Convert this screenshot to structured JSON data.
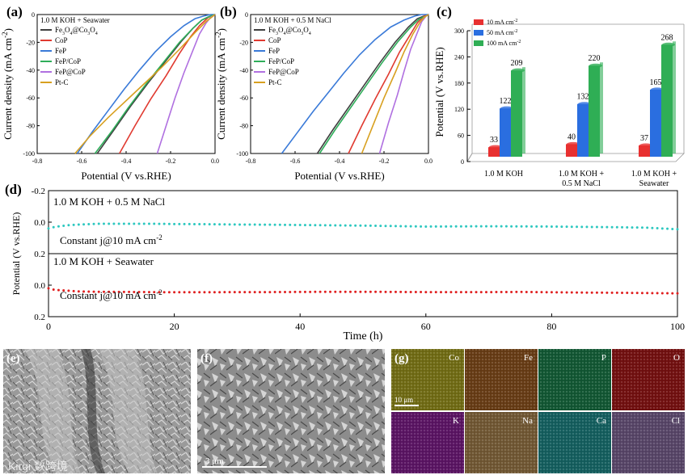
{
  "panels": {
    "a": {
      "letter": "(a)",
      "condition": "1.0 M KOH + Seawater",
      "xlabel": "Potential (V vs.RHE)",
      "ylabel": "Current density (mA cm",
      "ylabel_sup": "-2",
      "ylabel_end": ")"
    },
    "b": {
      "letter": "(b)",
      "condition": "1.0 M KOH + 0.5 M NaCl",
      "xlabel": "Potential (V vs.RHE)",
      "ylabel": "Current density (mA cm",
      "ylabel_sup": "-2",
      "ylabel_end": ")"
    },
    "c": {
      "letter": "(c)",
      "ylabel": "Potential (V vs.RHE)"
    },
    "d": {
      "letter": "(d)",
      "top_condition": "1.0 M KOH + 0.5 M NaCl",
      "top_note": "Constant j@10 mA cm",
      "top_note_sup": "-2",
      "bottom_condition": "1.0 M KOH + Seawater",
      "bottom_note": "Constant j@10 mA cm",
      "bottom_note_sup": "-2",
      "xlabel": "Time (h)",
      "ylabel": "Potential (V vs.RHE)"
    },
    "e": {
      "letter": "(e)",
      "watermark": "Kirgi 数跨境"
    },
    "f": {
      "letter": "(f)",
      "scale": "3 μm"
    },
    "g": {
      "letter": "(g)",
      "scale": "10 μm",
      "tiles": [
        {
          "label": "Co",
          "color": "#c8c020"
        },
        {
          "label": "Fe",
          "color": "#b86a22"
        },
        {
          "label": "P",
          "color": "#1e9a5a"
        },
        {
          "label": "O",
          "color": "#cc1a1a"
        },
        {
          "label": "K",
          "color": "#a020b0"
        },
        {
          "label": "Na",
          "color": "#c89a5a"
        },
        {
          "label": "Ca",
          "color": "#20a8a8"
        },
        {
          "label": "Cl",
          "color": "#9a7ab8"
        }
      ]
    }
  },
  "chart_data": [
    {
      "type": "line",
      "panel": "a",
      "xlim": [
        -0.8,
        0.0
      ],
      "ylim": [
        -100,
        0
      ],
      "xticks": [
        "-0.8",
        "-0.6",
        "-0.4",
        "-0.2",
        "0.0"
      ],
      "yticks": [
        "0",
        "-20",
        "-40",
        "-60",
        "-80",
        "-100"
      ],
      "legend_position": "top-left",
      "series": [
        {
          "name": "Fe3O4@Co3O4",
          "legend_main": "Fe",
          "legend_sub1": "3",
          "legend_mid": "O",
          "legend_sub2": "4",
          "legend_end": "@Co",
          "legend_sub3": "3",
          "legend_end2": "O",
          "legend_sub4": "4",
          "color": "#404040",
          "x": [
            -0.53,
            -0.45,
            -0.38,
            -0.3,
            -0.22,
            -0.15,
            -0.1,
            -0.06,
            -0.02,
            0.0
          ],
          "y": [
            -100,
            -82,
            -66,
            -49,
            -33,
            -19,
            -10,
            -4,
            -1,
            0
          ]
        },
        {
          "name": "CoP",
          "color": "#e03a30",
          "x": [
            -0.43,
            -0.36,
            -0.29,
            -0.22,
            -0.16,
            -0.11,
            -0.07,
            -0.03,
            0.0
          ],
          "y": [
            -100,
            -80,
            -61,
            -44,
            -28,
            -16,
            -8,
            -2,
            0
          ]
        },
        {
          "name": "FeP",
          "color": "#3a7ad8",
          "x": [
            -0.62,
            -0.55,
            -0.48,
            -0.41,
            -0.34,
            -0.27,
            -0.2,
            -0.14,
            -0.09,
            -0.05,
            -0.02,
            0.0
          ],
          "y": [
            -100,
            -84,
            -69,
            -54,
            -40,
            -27,
            -16,
            -8,
            -3,
            -1,
            0,
            0
          ]
        },
        {
          "name": "FeP/CoP",
          "color": "#2fae5a",
          "x": [
            -0.54,
            -0.46,
            -0.39,
            -0.31,
            -0.23,
            -0.16,
            -0.1,
            -0.06,
            -0.02,
            0.0
          ],
          "y": [
            -100,
            -83,
            -67,
            -50,
            -34,
            -20,
            -10,
            -4,
            -1,
            0
          ]
        },
        {
          "name": "FeP@CoP",
          "color": "#b070e0",
          "x": [
            -0.26,
            -0.22,
            -0.18,
            -0.14,
            -0.1,
            -0.07,
            -0.04,
            -0.02,
            0.0
          ],
          "y": [
            -100,
            -80,
            -60,
            -42,
            -26,
            -14,
            -6,
            -2,
            0
          ]
        },
        {
          "name": "Pt-C",
          "color": "#d8a020",
          "x": [
            -0.63,
            -0.56,
            -0.48,
            -0.4,
            -0.32,
            -0.24,
            -0.16,
            -0.09,
            -0.04,
            0.0
          ],
          "y": [
            -100,
            -87,
            -74,
            -62,
            -50,
            -38,
            -25,
            -13,
            -5,
            0
          ]
        }
      ]
    },
    {
      "type": "line",
      "panel": "b",
      "xlim": [
        -0.8,
        0.0
      ],
      "ylim": [
        -100,
        0
      ],
      "xticks": [
        "-0.8",
        "-0.6",
        "-0.4",
        "-0.2",
        "0.0"
      ],
      "yticks": [
        "0",
        "-20",
        "-40",
        "-60",
        "-80",
        "-100"
      ],
      "legend_position": "top-left",
      "series": [
        {
          "name": "Fe3O4@Co3O4",
          "legend_main": "Fe",
          "legend_sub1": "3",
          "legend_mid": "O",
          "legend_sub2": "4",
          "legend_end": "@Co",
          "legend_sub3": "3",
          "legend_end2": "O",
          "legend_sub4": "4",
          "color": "#404040",
          "x": [
            -0.5,
            -0.43,
            -0.36,
            -0.29,
            -0.22,
            -0.15,
            -0.09,
            -0.05,
            -0.02,
            0.0
          ],
          "y": [
            -100,
            -83,
            -67,
            -51,
            -35,
            -20,
            -9,
            -3,
            -1,
            0
          ]
        },
        {
          "name": "CoP",
          "color": "#e03a30",
          "x": [
            -0.36,
            -0.3,
            -0.24,
            -0.18,
            -0.13,
            -0.08,
            -0.05,
            -0.02,
            0.0
          ],
          "y": [
            -100,
            -80,
            -61,
            -43,
            -27,
            -14,
            -6,
            -1,
            0
          ]
        },
        {
          "name": "FeP",
          "color": "#3a7ad8",
          "x": [
            -0.66,
            -0.59,
            -0.52,
            -0.45,
            -0.38,
            -0.31,
            -0.24,
            -0.17,
            -0.11,
            -0.06,
            -0.03,
            0.0
          ],
          "y": [
            -100,
            -85,
            -70,
            -56,
            -42,
            -29,
            -18,
            -9,
            -4,
            -1,
            0,
            0
          ]
        },
        {
          "name": "FeP/CoP",
          "color": "#2fae5a",
          "x": [
            -0.49,
            -0.42,
            -0.35,
            -0.28,
            -0.21,
            -0.14,
            -0.08,
            -0.04,
            -0.01,
            0.0
          ],
          "y": [
            -100,
            -83,
            -67,
            -51,
            -35,
            -20,
            -9,
            -3,
            -1,
            0
          ]
        },
        {
          "name": "FeP@CoP",
          "color": "#b070e0",
          "x": [
            -0.22,
            -0.18,
            -0.14,
            -0.11,
            -0.08,
            -0.05,
            -0.03,
            -0.01,
            0.0
          ],
          "y": [
            -100,
            -78,
            -58,
            -41,
            -25,
            -13,
            -5,
            -1,
            0
          ]
        },
        {
          "name": "Pt-C",
          "color": "#d8a020",
          "x": [
            -0.3,
            -0.25,
            -0.2,
            -0.15,
            -0.11,
            -0.07,
            -0.04,
            -0.02,
            0.0
          ],
          "y": [
            -100,
            -80,
            -60,
            -42,
            -27,
            -14,
            -6,
            -2,
            0
          ]
        }
      ]
    },
    {
      "type": "bar",
      "panel": "c",
      "categories": [
        "1.0 M KOH",
        "1.0 M KOH + 0.5 M NaCl",
        "1.0 M KOH + Seawater"
      ],
      "category_lines": [
        [
          "1.0 M KOH"
        ],
        [
          "1.0 M KOH +",
          "0.5 M NaCl"
        ],
        [
          "1.0 M KOH +",
          "Seawater"
        ]
      ],
      "ylim": [
        0,
        300
      ],
      "yticks": [
        "0",
        "60",
        "120",
        "180",
        "240",
        "300"
      ],
      "legend_position": "top-left",
      "series": [
        {
          "name": "10 mA cm-2",
          "legend_main": "10 mA cm",
          "legend_sup": "-2",
          "color": "#e83030",
          "values": [
            33,
            40,
            37
          ]
        },
        {
          "name": "50 mA cm-2",
          "legend_main": "50 mA cm",
          "legend_sup": "-2",
          "color": "#2a6ee0",
          "values": [
            122,
            132,
            165
          ]
        },
        {
          "name": "100 mA cm-2",
          "legend_main": "100 mA cm",
          "legend_sup": "-2",
          "color": "#2fae55",
          "values": [
            209,
            220,
            268
          ]
        }
      ]
    },
    {
      "type": "scatter",
      "panel": "d",
      "xlim": [
        0,
        100
      ],
      "ylim": [
        -0.2,
        0.2
      ],
      "xticks": [
        "0",
        "20",
        "40",
        "60",
        "80",
        "100"
      ],
      "yticks_top": [
        "-0.2",
        "0.0",
        "0.2"
      ],
      "yticks_bottom": [
        "0.0",
        "0.2"
      ],
      "series": [
        {
          "name": "1.0 M KOH + 0.5 M NaCl",
          "color": "#2ec8c0",
          "x": [
            0,
            1,
            3,
            5,
            8,
            12,
            16,
            20,
            25,
            30,
            35,
            40,
            45,
            50,
            55,
            60,
            65,
            70,
            75,
            80,
            85,
            90,
            95,
            100
          ],
          "y": [
            0.04,
            0.03,
            0.02,
            0.015,
            0.01,
            0.01,
            0.01,
            0.012,
            0.013,
            0.015,
            0.016,
            0.018,
            0.02,
            0.022,
            0.025,
            0.028,
            0.027,
            0.026,
            0.027,
            0.028,
            0.03,
            0.032,
            0.035,
            0.045
          ]
        },
        {
          "name": "1.0 M KOH + Seawater",
          "color": "#e02020",
          "x": [
            0,
            1,
            3,
            5,
            8,
            12,
            16,
            20,
            25,
            30,
            35,
            40,
            45,
            50,
            55,
            60,
            65,
            70,
            75,
            80,
            85,
            90,
            95,
            100
          ],
          "y": [
            0.02,
            0.03,
            0.035,
            0.04,
            0.042,
            0.043,
            0.044,
            0.045,
            0.045,
            0.044,
            0.044,
            0.043,
            0.042,
            0.042,
            0.043,
            0.044,
            0.044,
            0.044,
            0.043,
            0.045,
            0.047,
            0.048,
            0.05,
            0.052
          ]
        }
      ]
    }
  ]
}
